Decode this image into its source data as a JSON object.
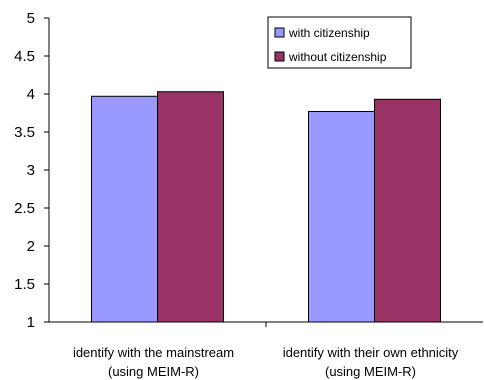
{
  "chart_data": {
    "type": "bar",
    "title": "",
    "xlabel": "",
    "ylabel": "",
    "ylim": [
      1,
      5
    ],
    "yticks": [
      1,
      1.5,
      2,
      2.5,
      3,
      3.5,
      4,
      4.5,
      5
    ],
    "ytick_labels": [
      "1",
      "1.5",
      "2",
      "2.5",
      "3",
      "3.5",
      "4",
      "4.5",
      "5"
    ],
    "categories": [
      [
        "identify with the mainstream",
        "(using MEIM-R)"
      ],
      [
        "identify with their own ethnicity",
        "(using MEIM-R)"
      ]
    ],
    "series": [
      {
        "name": "with citizenship",
        "color": "#9999ff",
        "values": [
          3.97,
          3.77
        ]
      },
      {
        "name": "without citizenship",
        "color": "#993366",
        "values": [
          4.03,
          3.93
        ]
      }
    ],
    "grid": false,
    "legend": "top-right"
  }
}
